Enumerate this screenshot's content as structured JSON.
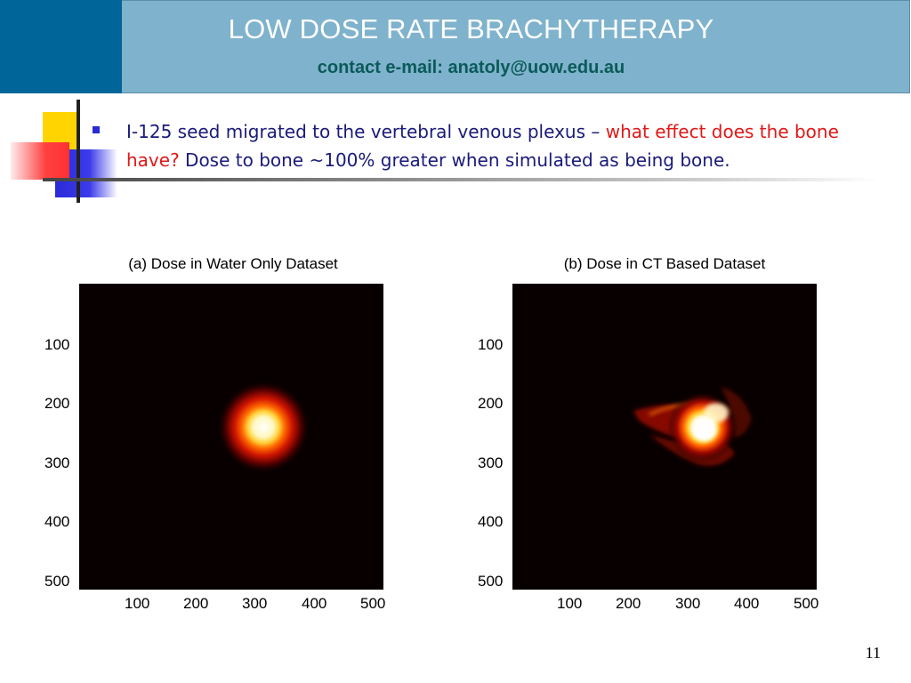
{
  "header": {
    "title": "LOW DOSE RATE BRACHYTHERAPY",
    "subtitle": "contact e-mail: anatoly@uow.edu.au"
  },
  "bullet": {
    "text_start": "I-125 seed migrated to the vertebral venous plexus – ",
    "text_highlight": "what effect does the bone have?",
    "text_end": "  Dose to bone ~100% greater when simulated as being bone."
  },
  "colors": {
    "header_dark": "#006699",
    "header_light": "#7fb2cc",
    "title_text": "#ffffff",
    "subtitle_text": "#0b5a5a",
    "bullet_text": "#1a1a7a",
    "highlight": "#e01818",
    "plot_background": "#000000"
  },
  "chart_data": [
    {
      "type": "heatmap",
      "title": "(a) Dose in Water Only Dataset",
      "x_ticks": [
        100,
        200,
        300,
        400,
        500
      ],
      "y_ticks": [
        100,
        200,
        300,
        400,
        500
      ],
      "xlim": [
        0,
        512
      ],
      "ylim": [
        0,
        512
      ],
      "hotspot": {
        "x": 310,
        "y": 240
      }
    },
    {
      "type": "heatmap",
      "title": "(b) Dose in CT Based Dataset",
      "x_ticks": [
        100,
        200,
        300,
        400,
        500
      ],
      "y_ticks": [
        100,
        200,
        300,
        400,
        500
      ],
      "xlim": [
        0,
        512
      ],
      "ylim": [
        0,
        512
      ],
      "hotspot": {
        "x": 320,
        "y": 240
      }
    }
  ],
  "footer": {
    "page_number": "11"
  }
}
